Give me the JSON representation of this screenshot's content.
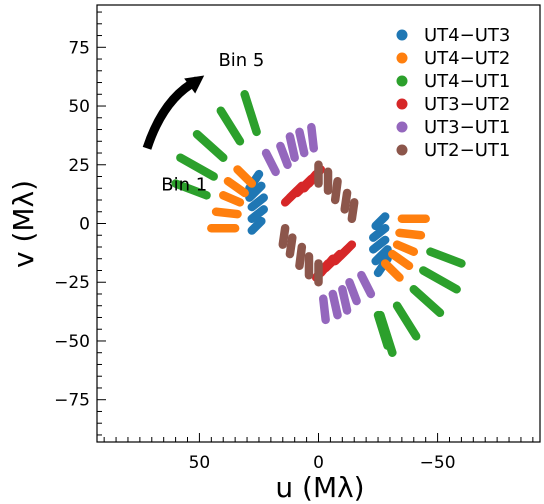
{
  "chart_data": {
    "type": "scatter",
    "title": "",
    "xlabel": "u (Mλ)",
    "ylabel": "v (Mλ)",
    "xlim": [
      93,
      -93
    ],
    "ylim": [
      -93,
      93
    ],
    "x_ticks": [
      50,
      0,
      -50
    ],
    "x_tick_labels": [
      "50",
      "0",
      "−50"
    ],
    "y_ticks": [
      75,
      50,
      25,
      0,
      -25,
      -50,
      -75
    ],
    "y_tick_labels": [
      "75",
      "50",
      "25",
      "0",
      "−25",
      "−50",
      "−75"
    ],
    "grid": false,
    "legend": "top-right",
    "series": [
      {
        "name": "UT4−UT3",
        "color": "#1f77b4",
        "tracks": [
          [
            [
              -24,
              -1
            ],
            [
              -28,
              3
            ]
          ],
          [
            [
              -23,
              -6
            ],
            [
              -28,
              -2
            ]
          ],
          [
            [
              -23,
              -11
            ],
            [
              -28,
              -7
            ]
          ],
          [
            [
              -24,
              -16
            ],
            [
              -29,
              -11
            ]
          ],
          [
            [
              -25,
              -21
            ],
            [
              -29,
              -15
            ]
          ],
          [
            [
              24,
              1
            ],
            [
              28,
              -3
            ]
          ],
          [
            [
              23,
              6
            ],
            [
              28,
              2
            ]
          ],
          [
            [
              23,
              11
            ],
            [
              28,
              7
            ]
          ],
          [
            [
              24,
              16
            ],
            [
              29,
              11
            ]
          ],
          [
            [
              25,
              21
            ],
            [
              29,
              15
            ]
          ]
        ]
      },
      {
        "name": "UT4−UT2",
        "color": "#ff7f0e",
        "tracks": [
          [
            [
              -35,
              2
            ],
            [
              -45,
              2
            ]
          ],
          [
            [
              -34,
              -4
            ],
            [
              -43,
              -5
            ]
          ],
          [
            [
              -33,
              -9
            ],
            [
              -40,
              -12
            ]
          ],
          [
            [
              -31,
              -13
            ],
            [
              -38,
              -18
            ]
          ],
          [
            [
              -28,
              -17
            ],
            [
              -34,
              -23
            ]
          ],
          [
            [
              35,
              -2
            ],
            [
              45,
              -2
            ]
          ],
          [
            [
              34,
              4
            ],
            [
              43,
              5
            ]
          ],
          [
            [
              33,
              9
            ],
            [
              40,
              12
            ]
          ],
          [
            [
              31,
              13
            ],
            [
              38,
              18
            ]
          ],
          [
            [
              28,
              17
            ],
            [
              34,
              23
            ]
          ]
        ]
      },
      {
        "name": "UT4−UT1",
        "color": "#2ca02c",
        "tracks": [
          [
            [
              -47,
              -12
            ],
            [
              -60,
              -17
            ]
          ],
          [
            [
              -44,
              -20
            ],
            [
              -58,
              -28
            ]
          ],
          [
            [
              -40,
              -28
            ],
            [
              -51,
              -38
            ]
          ],
          [
            [
              -33,
              -35
            ],
            [
              -41,
              -48
            ]
          ],
          [
            [
              -26,
              -39
            ],
            [
              -31,
              -55
            ]
          ],
          [
            [
              -25,
              -39
            ],
            [
              -29,
              -52
            ]
          ],
          [
            [
              47,
              12
            ],
            [
              60,
              17
            ]
          ],
          [
            [
              44,
              20
            ],
            [
              58,
              28
            ]
          ],
          [
            [
              40,
              28
            ],
            [
              51,
              38
            ]
          ],
          [
            [
              33,
              35
            ],
            [
              41,
              48
            ]
          ],
          [
            [
              26,
              39
            ],
            [
              31,
              55
            ]
          ]
        ]
      },
      {
        "name": "UT3−UT2",
        "color": "#d62728",
        "tracks": [
          [
            [
              -9,
              -14
            ],
            [
              -14,
              -9
            ]
          ],
          [
            [
              -7,
              -16
            ],
            [
              -12,
              -11
            ]
          ],
          [
            [
              -3,
              -19
            ],
            [
              -9,
              -13
            ]
          ],
          [
            [
              -1,
              -21
            ],
            [
              -6,
              -15
            ]
          ],
          [
            [
              1,
              -23
            ],
            [
              -4,
              -17
            ]
          ],
          [
            [
              9,
              14
            ],
            [
              14,
              9
            ]
          ],
          [
            [
              7,
              16
            ],
            [
              12,
              11
            ]
          ],
          [
            [
              3,
              19
            ],
            [
              9,
              13
            ]
          ],
          [
            [
              1,
              21
            ],
            [
              6,
              15
            ]
          ],
          [
            [
              -1,
              23
            ],
            [
              4,
              17
            ]
          ]
        ]
      },
      {
        "name": "UT3−UT1",
        "color": "#9467bd",
        "tracks": [
          [
            [
              -18,
              -22
            ],
            [
              -22,
              -30
            ]
          ],
          [
            [
              -13,
              -25
            ],
            [
              -16,
              -33
            ]
          ],
          [
            [
              -10,
              -28
            ],
            [
              -12,
              -37
            ]
          ],
          [
            [
              -6,
              -30
            ],
            [
              -8,
              -39
            ]
          ],
          [
            [
              -2,
              -32
            ],
            [
              -3,
              -41
            ]
          ],
          [
            [
              18,
              22
            ],
            [
              22,
              30
            ]
          ],
          [
            [
              13,
              25
            ],
            [
              16,
              33
            ]
          ],
          [
            [
              10,
              28
            ],
            [
              12,
              37
            ]
          ],
          [
            [
              6,
              30
            ],
            [
              8,
              39
            ]
          ],
          [
            [
              2,
              32
            ],
            [
              3,
              41
            ]
          ]
        ]
      },
      {
        "name": "UT2−UT1",
        "color": "#8c564b",
        "tracks": [
          [
            [
              0,
              -17
            ],
            [
              0,
              -25
            ]
          ],
          [
            [
              4,
              -14
            ],
            [
              4,
              -22
            ]
          ],
          [
            [
              7,
              -10
            ],
            [
              8,
              -18
            ]
          ],
          [
            [
              11,
              -6
            ],
            [
              12,
              -13
            ]
          ],
          [
            [
              14,
              -2
            ],
            [
              15,
              -9
            ]
          ],
          [
            [
              0,
              17
            ],
            [
              0,
              25
            ]
          ],
          [
            [
              -4,
              14
            ],
            [
              -4,
              22
            ]
          ],
          [
            [
              -7,
              10
            ],
            [
              -8,
              18
            ]
          ],
          [
            [
              -11,
              6
            ],
            [
              -12,
              13
            ]
          ],
          [
            [
              -14,
              2
            ],
            [
              -15,
              9
            ]
          ]
        ]
      }
    ],
    "annotations": [
      {
        "text": "Bin 1",
        "u": 66,
        "v": 14,
        "anchor": "start"
      },
      {
        "text": "Bin 5",
        "u": 42,
        "v": 67,
        "anchor": "start"
      }
    ],
    "arrow": {
      "from": [
        72,
        32
      ],
      "to": [
        48,
        63
      ]
    }
  }
}
